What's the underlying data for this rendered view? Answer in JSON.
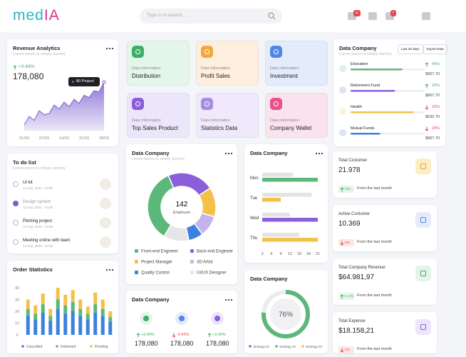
{
  "header": {
    "logo": "med",
    "logo_accent": "IA",
    "search": "Type in to search...",
    "badges": [
      "11",
      "7"
    ]
  },
  "revenue": {
    "title": "Revenue Analytics",
    "subtitle": "Lorem ipsum is simply dummy",
    "change": "+3.49%",
    "value": "178,080",
    "tooltip": "80 Project",
    "chart": {
      "type": "area",
      "categories": [
        "01/03",
        null,
        null,
        null,
        "07/03",
        null,
        null,
        null,
        "14/03",
        null,
        null,
        null,
        "21/03",
        null,
        null,
        null,
        "28/03"
      ],
      "values": [
        10,
        25,
        18,
        35,
        28,
        30,
        45,
        38,
        50,
        42,
        55,
        48,
        62,
        58,
        70,
        68,
        85
      ],
      "ylim": [
        0,
        100
      ],
      "color": "#7b5fd0"
    }
  },
  "todo": {
    "title": "To do list",
    "subtitle": "Lorem ipsum is simply dummy",
    "items": [
      {
        "task": "UI kit",
        "date": "12 Sep, 2023 - 10:05",
        "done": false
      },
      {
        "task": "Design system",
        "date": "12 Sep, 2023 - 10:05",
        "done": true
      },
      {
        "task": "Pitching project",
        "date": "12 Sep, 2023 - 10:05",
        "done": false
      },
      {
        "task": "Meeting online with team",
        "date": "12 Sep, 2023 - 10:05",
        "done": false
      }
    ]
  },
  "orders": {
    "title": "Order Statistics",
    "chart": {
      "type": "bar",
      "stacked": true,
      "categories": [
        null,
        null,
        null,
        null,
        null,
        null,
        null,
        null,
        null,
        null,
        null,
        null
      ],
      "series": [
        {
          "name": "Cancelled",
          "color": "#3b82e0",
          "values": [
            16,
            13,
            19,
            12,
            22,
            18,
            20,
            16,
            13,
            19,
            16,
            11
          ]
        },
        {
          "name": "Delivered",
          "color": "#5cb87a",
          "values": [
            6,
            5,
            7,
            4,
            8,
            7,
            8,
            6,
            5,
            7,
            6,
            4
          ]
        },
        {
          "name": "Pending",
          "color": "#f5c04a",
          "values": [
            8,
            7,
            9,
            6,
            10,
            9,
            10,
            8,
            6,
            10,
            8,
            5
          ]
        }
      ],
      "ylim": [
        0,
        40
      ],
      "yticks": [
        40,
        30,
        20,
        10,
        0
      ]
    }
  },
  "tiles": [
    {
      "label": "Data Information",
      "name": "Distribution",
      "bg": "#e4f5ea",
      "color": "#3fae6a"
    },
    {
      "label": "Data Information",
      "name": "Profit Sales",
      "bg": "#fdeedd",
      "color": "#f4a73b"
    },
    {
      "label": "Data Information",
      "name": "Investment",
      "bg": "#e3ecfb",
      "color": "#4f86e8"
    },
    {
      "label": "Data Information",
      "name": "Top Sales Product",
      "bg": "#ece6fb",
      "color": "#8a5fd9"
    },
    {
      "label": "Data Information",
      "name": "Statistics Data",
      "bg": "#efe9fb",
      "color": "#a58de6"
    },
    {
      "label": "Data Information",
      "name": "Company Wallet",
      "bg": "#fbe3ee",
      "color": "#e8518a"
    }
  ],
  "employees": {
    "title": "Data Company",
    "subtitle": "Lorem ipsum is simply dummy",
    "total": "142",
    "total_label": "Employee",
    "chart": {
      "type": "donut",
      "categories": [
        "Front-end Engineer",
        "Back-end Engineer",
        "Project Manager",
        "3D Artist",
        "Quality Control",
        "UI/UX Designer"
      ],
      "values": [
        35,
        22,
        14,
        10,
        7,
        12
      ],
      "colors": [
        "#5cb87a",
        "#8a5fd9",
        "#f5c04a",
        "#c3b3ef",
        "#3b82e0",
        "#e6e6ea"
      ]
    }
  },
  "weekly": {
    "title": "Data Company",
    "chart": {
      "type": "hbar",
      "categories": [
        "Mon",
        "Tue",
        "Wed",
        "Thu"
      ],
      "series": [
        {
          "color": "#e3e3e6",
          "values": [
            13,
            19,
            12,
            15
          ]
        },
        {
          "colors": [
            "#5cb87a",
            "#f5c04a",
            "#8a5fd9",
            "#f5c04a"
          ],
          "values": [
            21,
            9,
            21,
            21
          ]
        }
      ],
      "xlim": [
        3,
        21
      ],
      "xticks": [
        3,
        6,
        9,
        12,
        15,
        18,
        21
      ]
    }
  },
  "summary": {
    "title": "Data Company",
    "items": [
      {
        "change": "+3.49%",
        "value": "178,080",
        "up": true,
        "color": "#3fae6a",
        "bg": "#e4f5ea"
      },
      {
        "change": "-0.42%",
        "value": "178,080",
        "up": false,
        "color": "#4f86e8",
        "bg": "#e3ecfb"
      },
      {
        "change": "+3.49%",
        "value": "178,080",
        "up": true,
        "color": "#8a5fd9",
        "bg": "#ece6fb"
      }
    ]
  },
  "strategy": {
    "title": "Data Company",
    "chart": {
      "type": "ring",
      "value": 76,
      "value_label": "76%",
      "ylim": [
        0,
        100
      ],
      "color": "#5cb87a"
    },
    "legend": [
      {
        "name": "Strategy 01",
        "color": "#8a5fd9"
      },
      {
        "name": "Strategy 02",
        "color": "#5cb87a"
      },
      {
        "name": "Strategy 03",
        "color": "#f5c04a"
      }
    ]
  },
  "funds": {
    "title": "Data Company",
    "subtitle": "Lorem ipsum is simply dummy",
    "range": "Last 30 days",
    "export": "Export Data",
    "xlim": [
      0,
      100
    ],
    "items": [
      {
        "name": "Education",
        "change": "40%",
        "up": true,
        "amount": "$967.70",
        "progress": 70,
        "color": "#5cb87a"
      },
      {
        "name": "Retirement Fund",
        "change": "20%",
        "up": true,
        "amount": "$867.70",
        "progress": 60,
        "color": "#8a5fd9"
      },
      {
        "name": "Health",
        "change": "15%",
        "up": false,
        "amount": "$530.70",
        "progress": 85,
        "color": "#f5c04a"
      },
      {
        "name": "Mutual Funds",
        "change": "20%",
        "up": false,
        "amount": "$967.70",
        "progress": 40,
        "color": "#3b82e0"
      }
    ]
  },
  "stats": [
    {
      "title": "Total Costumer",
      "value": "21.978",
      "change": "+8%",
      "up": true,
      "note": "From the last month",
      "bg": "#fbeec5",
      "color": "#e0a92c"
    },
    {
      "title": "Active Costumer",
      "value": "10.369",
      "change": "-5%",
      "up": false,
      "note": "From the last month",
      "bg": "#e6ebfb",
      "color": "#4f86e8"
    },
    {
      "title": "Total Company Revenue",
      "value": "$64.981,97",
      "change": "+1.2%",
      "up": true,
      "note": "From the last month",
      "bg": "#e5f4ea",
      "color": "#3fae6a"
    },
    {
      "title": "Total Expense",
      "value": "$18.158,21",
      "change": "-2%",
      "up": false,
      "note": "From the last month",
      "bg": "#ece6fb",
      "color": "#8a5fd9"
    }
  ]
}
